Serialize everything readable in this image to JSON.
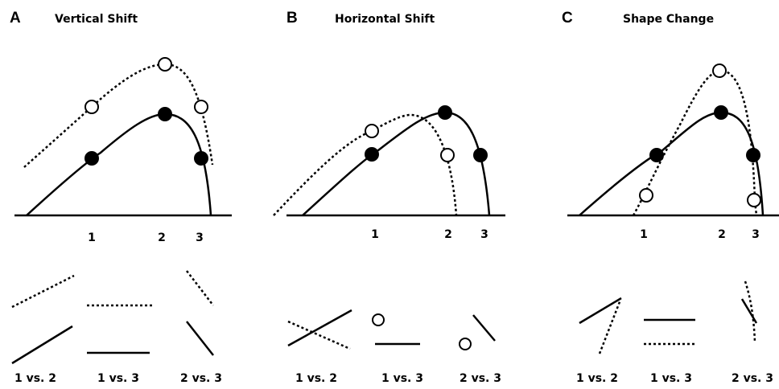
{
  "panels": [
    {
      "letter": "A",
      "title": "Vertical Shift",
      "axis_labels": [
        "1",
        "2",
        "3"
      ],
      "comparisons": [
        "1 vs. 2",
        "1 vs. 3",
        "2 vs. 3"
      ]
    },
    {
      "letter": "B",
      "title": "Horizontal Shift",
      "axis_labels": [
        "1",
        "2",
        "3"
      ],
      "comparisons": [
        "1 vs. 2",
        "1 vs. 3",
        "2 vs. 3"
      ]
    },
    {
      "letter": "C",
      "title": "Shape Change",
      "axis_labels": [
        "1",
        "2",
        "3"
      ],
      "comparisons": [
        "1 vs. 2",
        "1 vs. 3",
        "2 vs. 3"
      ]
    }
  ]
}
